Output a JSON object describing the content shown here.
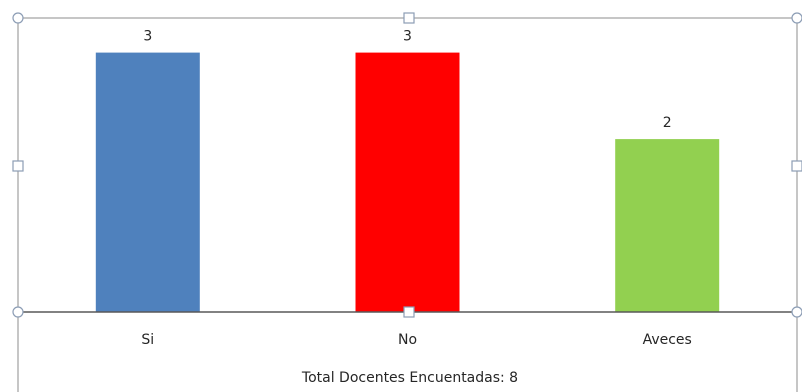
{
  "chart_data": {
    "type": "bar",
    "categories": [
      "Si",
      "No",
      "Aveces"
    ],
    "values": [
      3,
      3,
      2
    ],
    "data_labels": [
      "3",
      "3",
      "2"
    ],
    "colors": [
      "#4f81bd",
      "#ff0000",
      "#92d050"
    ],
    "ylim": [
      0,
      3.4
    ],
    "grid": false,
    "legend": "none",
    "title": "",
    "xlabel": "",
    "ylabel": ""
  },
  "caption": {
    "text": "Total Docentes Encuentadas:  8"
  }
}
